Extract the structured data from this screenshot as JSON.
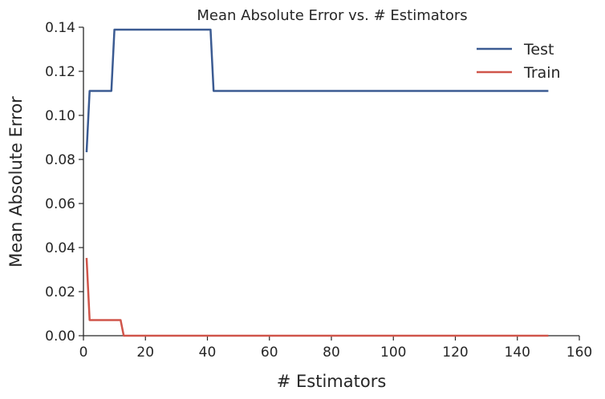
{
  "chart_data": {
    "type": "line",
    "title": "Mean Absolute Error vs. # Estimators",
    "xlabel": "# Estimators",
    "ylabel": "Mean Absolute Error",
    "xlim": [
      0,
      160
    ],
    "ylim": [
      0.0,
      0.14
    ],
    "xticks": [
      0,
      20,
      40,
      60,
      80,
      100,
      120,
      140,
      160
    ],
    "yticks": [
      0.0,
      0.02,
      0.04,
      0.06,
      0.08,
      0.1,
      0.12,
      0.14
    ],
    "xtick_labels": [
      "0",
      "20",
      "40",
      "60",
      "80",
      "100",
      "120",
      "140",
      "160"
    ],
    "ytick_labels": [
      "0.00",
      "0.02",
      "0.04",
      "0.06",
      "0.08",
      "0.10",
      "0.12",
      "0.14"
    ],
    "grid": false,
    "legend_position": "top-right",
    "series": [
      {
        "name": "Test",
        "color": "#3b5b92",
        "points": [
          [
            1,
            0.0833
          ],
          [
            2,
            0.1111
          ],
          [
            9,
            0.1111
          ],
          [
            10,
            0.1389
          ],
          [
            41,
            0.1389
          ],
          [
            42,
            0.1111
          ],
          [
            150,
            0.1111
          ]
        ]
      },
      {
        "name": "Train",
        "color": "#d0554a",
        "points": [
          [
            1,
            0.0353
          ],
          [
            2,
            0.0071
          ],
          [
            12,
            0.0071
          ],
          [
            13,
            0.0
          ],
          [
            150,
            0.0
          ]
        ]
      }
    ]
  }
}
